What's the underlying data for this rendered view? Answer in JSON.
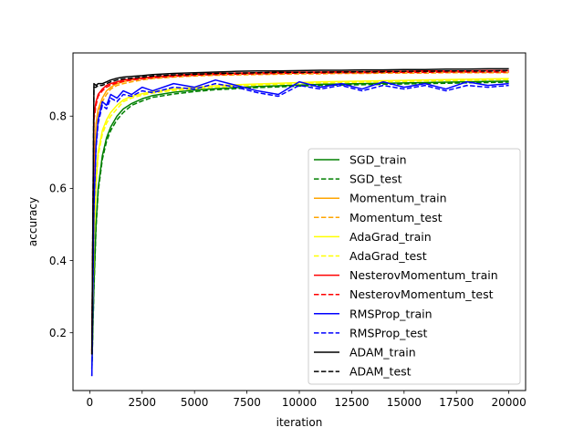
{
  "chart_data": {
    "type": "line",
    "title": "",
    "xlabel": "iteration",
    "ylabel": "accuracy",
    "xlim": [
      -800,
      20800
    ],
    "ylim": [
      0.04,
      0.975
    ],
    "x_ticks": [
      0,
      2500,
      5000,
      7500,
      10000,
      12500,
      15000,
      17500,
      20000
    ],
    "x_tick_labels": [
      "0",
      "2500",
      "5000",
      "7500",
      "10000",
      "12500",
      "15000",
      "17500",
      "20000"
    ],
    "y_ticks": [
      0.2,
      0.4,
      0.6,
      0.8
    ],
    "y_tick_labels": [
      "0.2",
      "0.4",
      "0.6",
      "0.8"
    ],
    "grid": false,
    "legend_position": "lower-right",
    "x": [
      100,
      200,
      300,
      400,
      600,
      800,
      1000,
      1300,
      1600,
      2000,
      2500,
      3000,
      4000,
      5000,
      6000,
      7000,
      8000,
      9000,
      10000,
      11000,
      12000,
      13000,
      14000,
      15000,
      16000,
      17000,
      18000,
      19000,
      20000
    ],
    "series": [
      {
        "name": "SGD_train",
        "color": "#008000",
        "dash": "solid",
        "values": [
          0.1,
          0.33,
          0.5,
          0.6,
          0.69,
          0.74,
          0.77,
          0.8,
          0.82,
          0.835,
          0.848,
          0.857,
          0.866,
          0.872,
          0.876,
          0.879,
          0.882,
          0.884,
          0.886,
          0.888,
          0.889,
          0.89,
          0.891,
          0.892,
          0.893,
          0.894,
          0.895,
          0.896,
          0.897
        ]
      },
      {
        "name": "SGD_test",
        "color": "#008000",
        "dash": "dashed",
        "values": [
          0.1,
          0.32,
          0.49,
          0.59,
          0.68,
          0.73,
          0.76,
          0.79,
          0.81,
          0.83,
          0.842,
          0.852,
          0.861,
          0.868,
          0.873,
          0.876,
          0.879,
          0.881,
          0.883,
          0.885,
          0.886,
          0.887,
          0.888,
          0.889,
          0.89,
          0.891,
          0.892,
          0.893,
          0.894
        ]
      },
      {
        "name": "Momentum_train",
        "color": "#ffa500",
        "dash": "solid",
        "values": [
          0.14,
          0.65,
          0.78,
          0.82,
          0.85,
          0.87,
          0.88,
          0.89,
          0.895,
          0.9,
          0.905,
          0.908,
          0.912,
          0.915,
          0.917,
          0.918,
          0.919,
          0.92,
          0.921,
          0.921,
          0.922,
          0.922,
          0.923,
          0.923,
          0.924,
          0.924,
          0.924,
          0.925,
          0.925
        ]
      },
      {
        "name": "Momentum_test",
        "color": "#ffa500",
        "dash": "dashed",
        "values": [
          0.14,
          0.64,
          0.77,
          0.81,
          0.84,
          0.86,
          0.875,
          0.885,
          0.89,
          0.895,
          0.9,
          0.904,
          0.908,
          0.911,
          0.913,
          0.914,
          0.915,
          0.916,
          0.917,
          0.917,
          0.918,
          0.918,
          0.919,
          0.919,
          0.919,
          0.92,
          0.92,
          0.92,
          0.92
        ]
      },
      {
        "name": "AdaGrad_train",
        "color": "#ffff00",
        "dash": "solid",
        "values": [
          0.12,
          0.45,
          0.62,
          0.7,
          0.76,
          0.79,
          0.81,
          0.83,
          0.845,
          0.855,
          0.862,
          0.868,
          0.875,
          0.88,
          0.884,
          0.887,
          0.889,
          0.891,
          0.893,
          0.895,
          0.896,
          0.897,
          0.898,
          0.899,
          0.9,
          0.901,
          0.902,
          0.903,
          0.904
        ]
      },
      {
        "name": "AdaGrad_test",
        "color": "#ffff00",
        "dash": "dashed",
        "values": [
          0.12,
          0.44,
          0.61,
          0.69,
          0.75,
          0.78,
          0.8,
          0.82,
          0.84,
          0.85,
          0.858,
          0.864,
          0.871,
          0.876,
          0.88,
          0.883,
          0.886,
          0.888,
          0.89,
          0.892,
          0.893,
          0.894,
          0.895,
          0.896,
          0.897,
          0.898,
          0.899,
          0.9,
          0.901
        ]
      },
      {
        "name": "NesterovMomentum_train",
        "color": "#ff0000",
        "dash": "solid",
        "values": [
          0.15,
          0.8,
          0.84,
          0.86,
          0.875,
          0.885,
          0.89,
          0.895,
          0.9,
          0.903,
          0.906,
          0.909,
          0.913,
          0.916,
          0.918,
          0.919,
          0.92,
          0.921,
          0.922,
          0.922,
          0.923,
          0.923,
          0.924,
          0.924,
          0.925,
          0.925,
          0.925,
          0.926,
          0.926
        ]
      },
      {
        "name": "NesterovMomentum_test",
        "color": "#ff0000",
        "dash": "dashed",
        "values": [
          0.15,
          0.79,
          0.83,
          0.855,
          0.87,
          0.88,
          0.886,
          0.892,
          0.896,
          0.9,
          0.903,
          0.906,
          0.91,
          0.913,
          0.915,
          0.916,
          0.917,
          0.918,
          0.919,
          0.919,
          0.92,
          0.92,
          0.921,
          0.921,
          0.921,
          0.922,
          0.922,
          0.922,
          0.922
        ]
      },
      {
        "name": "RMSProp_train",
        "color": "#0000ff",
        "dash": "solid",
        "values": [
          0.08,
          0.55,
          0.72,
          0.79,
          0.84,
          0.83,
          0.86,
          0.85,
          0.87,
          0.86,
          0.88,
          0.87,
          0.89,
          0.88,
          0.9,
          0.885,
          0.87,
          0.86,
          0.895,
          0.88,
          0.89,
          0.875,
          0.895,
          0.88,
          0.89,
          0.875,
          0.895,
          0.885,
          0.89
        ]
      },
      {
        "name": "RMSProp_test",
        "color": "#0000ff",
        "dash": "dashed",
        "values": [
          0.08,
          0.54,
          0.71,
          0.78,
          0.83,
          0.82,
          0.85,
          0.84,
          0.86,
          0.855,
          0.87,
          0.865,
          0.88,
          0.875,
          0.89,
          0.88,
          0.865,
          0.855,
          0.885,
          0.875,
          0.885,
          0.87,
          0.885,
          0.875,
          0.885,
          0.87,
          0.885,
          0.88,
          0.885
        ]
      },
      {
        "name": "ADAM_train",
        "color": "#000000",
        "dash": "solid",
        "values": [
          0.14,
          0.89,
          0.885,
          0.89,
          0.89,
          0.895,
          0.9,
          0.905,
          0.908,
          0.91,
          0.912,
          0.915,
          0.918,
          0.92,
          0.922,
          0.924,
          0.925,
          0.925,
          0.926,
          0.927,
          0.927,
          0.928,
          0.928,
          0.929,
          0.929,
          0.93,
          0.93,
          0.931,
          0.931
        ]
      },
      {
        "name": "ADAM_test",
        "color": "#000000",
        "dash": "dashed",
        "values": [
          0.14,
          0.88,
          0.88,
          0.885,
          0.885,
          0.89,
          0.895,
          0.9,
          0.903,
          0.905,
          0.908,
          0.911,
          0.914,
          0.916,
          0.918,
          0.919,
          0.92,
          0.921,
          0.921,
          0.922,
          0.922,
          0.923,
          0.923,
          0.924,
          0.924,
          0.925,
          0.925,
          0.925,
          0.926
        ]
      }
    ]
  }
}
